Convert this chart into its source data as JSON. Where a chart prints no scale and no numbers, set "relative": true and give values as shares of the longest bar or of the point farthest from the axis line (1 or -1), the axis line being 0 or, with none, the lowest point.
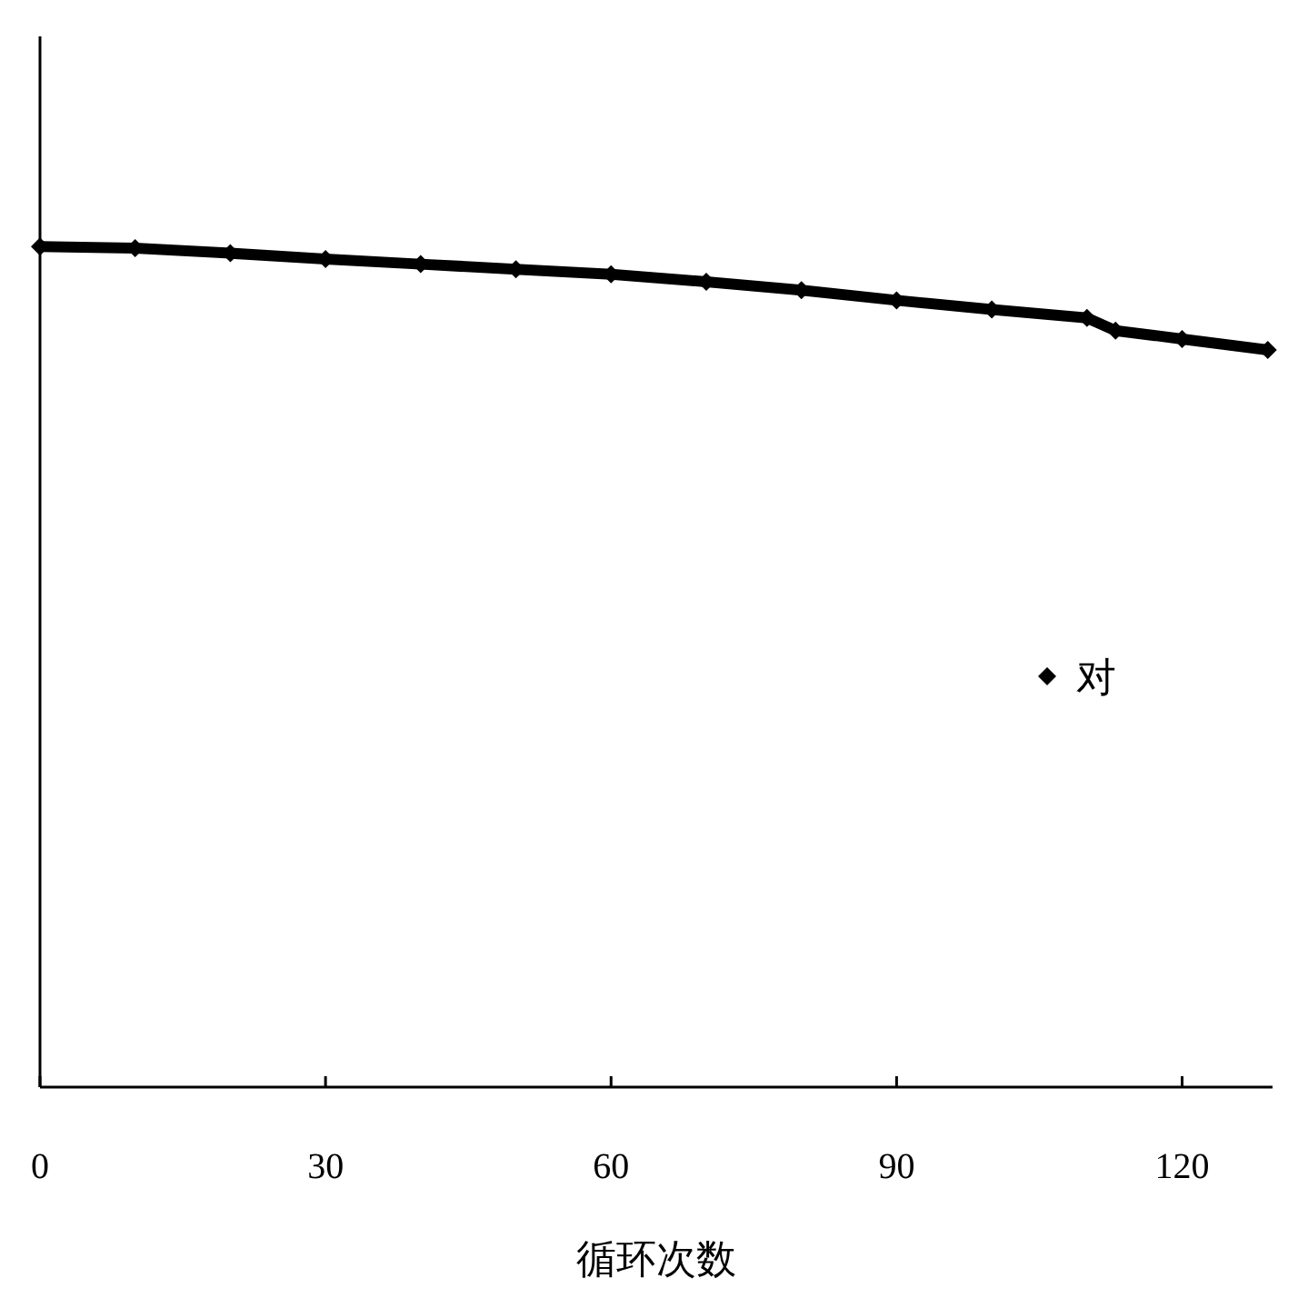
{
  "chart_data": {
    "type": "line",
    "xlabel": "循环次数",
    "relative": true,
    "marker": "diamond",
    "legend": "right",
    "xlim": [
      0,
      129.5
    ],
    "xticks": [
      0,
      30,
      60,
      90,
      120
    ],
    "series": [
      {
        "name": "对",
        "color": "#000000",
        "x": [
          0,
          10,
          20,
          30,
          40,
          50,
          60,
          70,
          80,
          90,
          100,
          110,
          113,
          120,
          129
        ],
        "values": [
          1.0,
          0.998,
          0.992,
          0.985,
          0.979,
          0.973,
          0.967,
          0.958,
          0.948,
          0.936,
          0.925,
          0.915,
          0.9,
          0.89,
          0.877
        ]
      }
    ]
  }
}
